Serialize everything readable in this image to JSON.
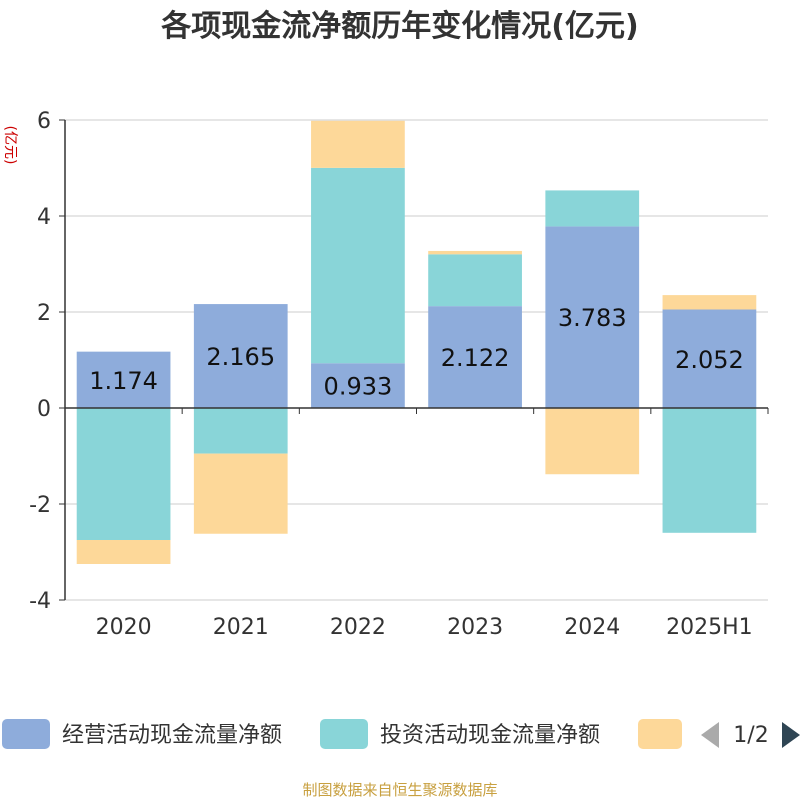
{
  "chart_data": {
    "type": "bar",
    "stacked": true,
    "title": "各项现金流净额历年变化情况(亿元)",
    "ylabel": "(亿元)",
    "xlabel": "",
    "categories": [
      "2020",
      "2021",
      "2022",
      "2023",
      "2024",
      "2025H1"
    ],
    "ylim": [
      -4,
      6
    ],
    "yticks": [
      -4,
      -2,
      0,
      2,
      4,
      6
    ],
    "grid": true,
    "series": [
      {
        "name": "经营活动现金流量净额",
        "color": "#8eacdb",
        "values": [
          1.174,
          2.165,
          0.933,
          2.122,
          3.783,
          2.052
        ],
        "labels": [
          "1.174",
          "2.165",
          "0.933",
          "2.122",
          "3.783",
          "2.052"
        ]
      },
      {
        "name": "投资活动现金流量净额",
        "color": "#89d5d8",
        "values": [
          -2.75,
          -0.95,
          4.07,
          1.08,
          0.75,
          -2.6
        ]
      },
      {
        "name": "",
        "color": "#fdd899",
        "values": [
          -0.5,
          -1.67,
          0.98,
          0.07,
          -1.38,
          0.3
        ]
      }
    ],
    "legend": {
      "position": "bottom",
      "page": "1/2"
    }
  },
  "footer": {
    "source": "制图数据来自恒生聚源数据库"
  },
  "colors": {
    "axis": "#333333",
    "grid": "#cccccc",
    "text": "#333333",
    "ylabel": "#cc0000",
    "footer": "#c8a040",
    "pager_active": "#2f4554",
    "pager_inactive": "#aaaaaa"
  }
}
